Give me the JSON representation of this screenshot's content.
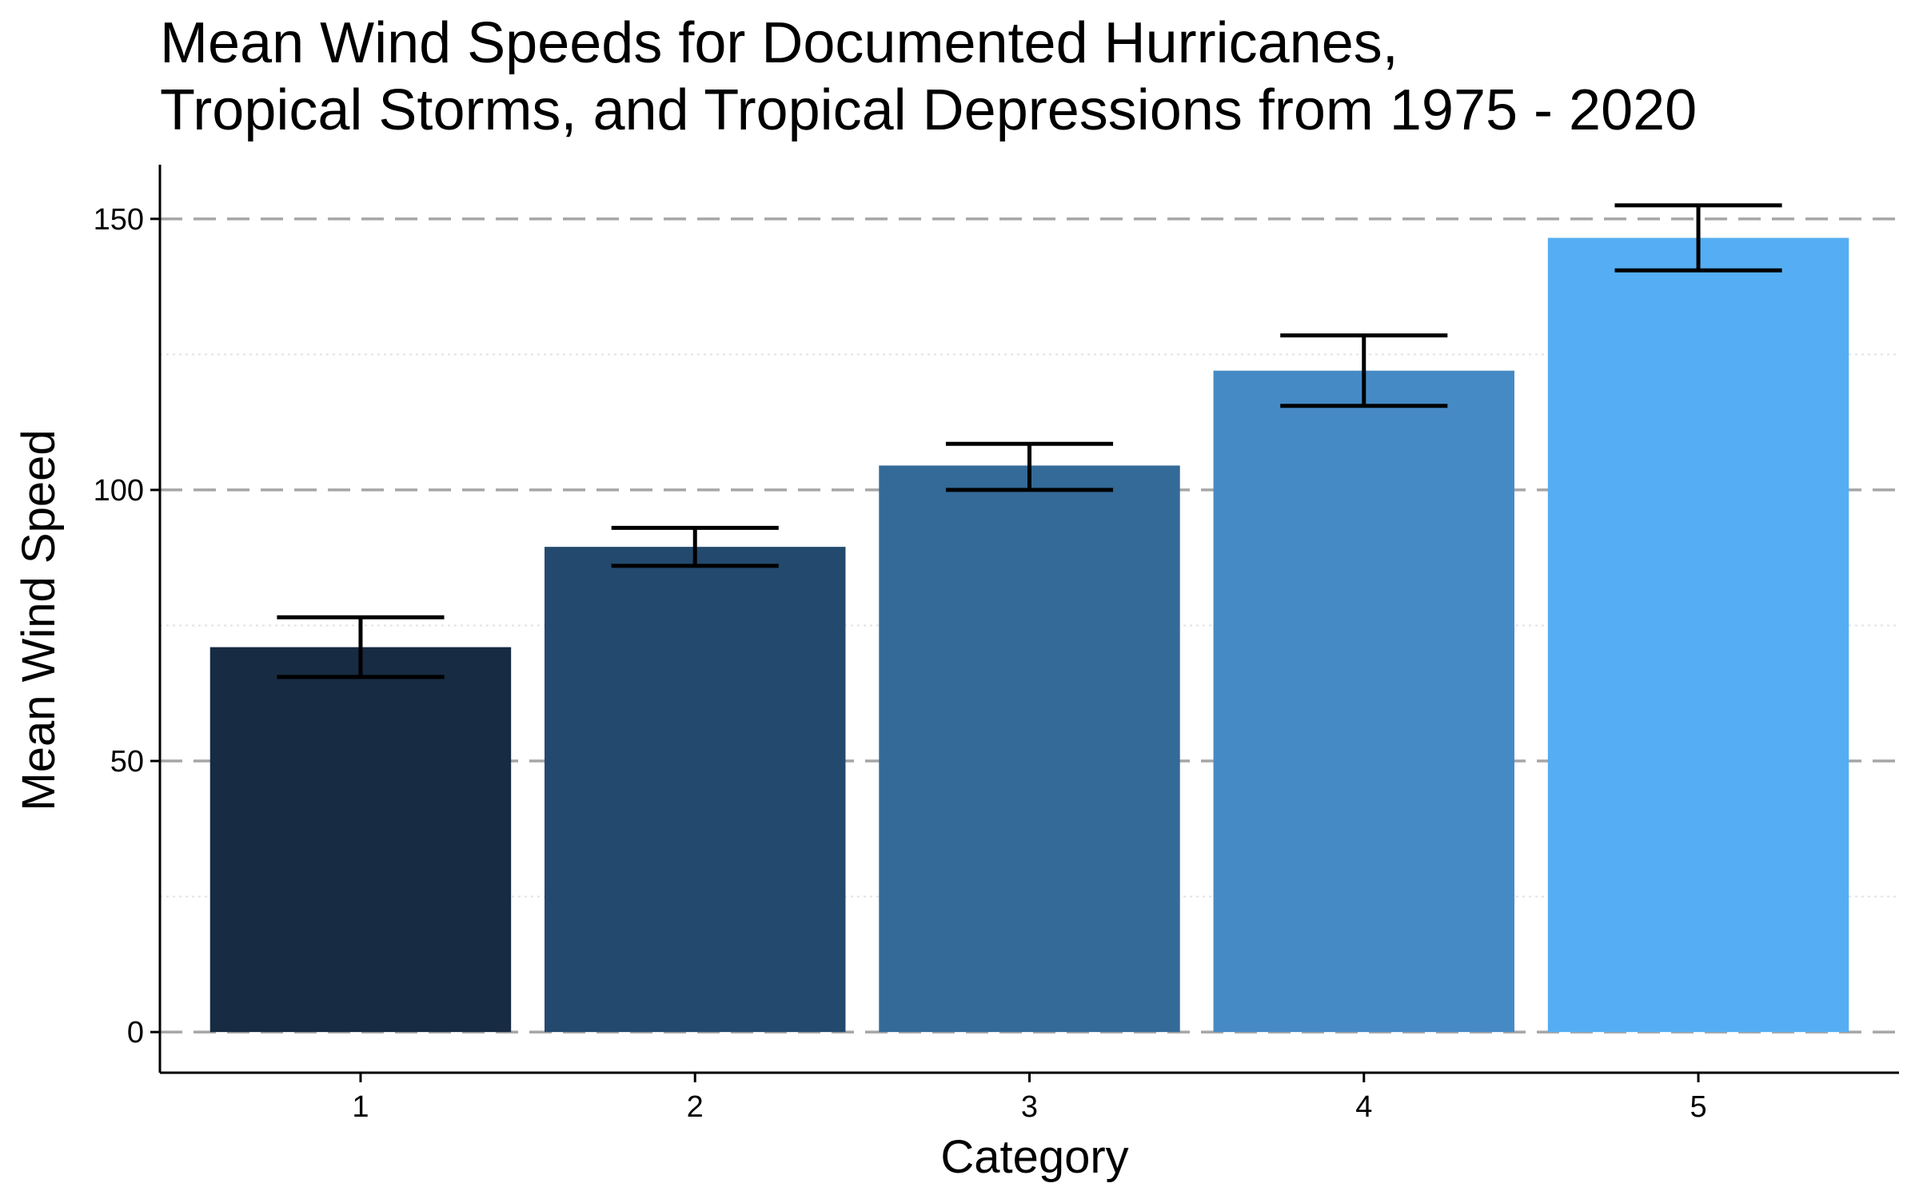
{
  "chart_data": {
    "type": "bar",
    "title_lines": [
      "Mean Wind Speeds for Documented Hurricanes,",
      "Tropical Storms, and Tropical Depressions from 1975 - 2020"
    ],
    "xlabel": "Category",
    "ylabel": "Mean Wind Speed",
    "categories": [
      "1",
      "2",
      "3",
      "4",
      "5"
    ],
    "values": [
      71,
      89.5,
      104.5,
      122,
      146.5
    ],
    "error_bars": [
      {
        "low": 65.5,
        "high": 76.5
      },
      {
        "low": 86,
        "high": 93
      },
      {
        "low": 100,
        "high": 108.5
      },
      {
        "low": 115.5,
        "high": 128.5
      },
      {
        "low": 140.5,
        "high": 152.5
      }
    ],
    "bar_colors": [
      "#172B42",
      "#234A6E",
      "#346A98",
      "#468AC5",
      "#55AEF3"
    ],
    "yticks": [
      "0",
      "50",
      "100",
      "150"
    ],
    "ylim": [
      -7.5,
      160
    ],
    "major_grid": "dashed",
    "minor_grid": "dotted",
    "legend": "none"
  }
}
